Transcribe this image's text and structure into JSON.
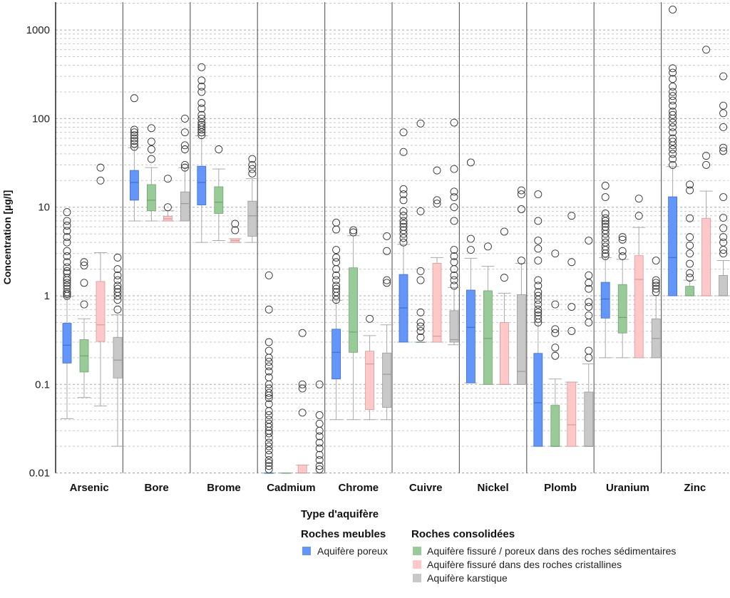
{
  "chart_data": {
    "type": "boxplot",
    "yscale": "log",
    "ylabel": "Concentration [µg/l]",
    "ylim": [
      0.01,
      2000
    ],
    "yticks": [
      0.01,
      0.1,
      1,
      10,
      100,
      1000
    ],
    "ytick_labels": [
      "0.01",
      "0.1",
      "1",
      "10",
      "100",
      "1000"
    ],
    "grid": "dashed horizontal minor and major",
    "categories": [
      "Arsenic",
      "Bore",
      "Brome",
      "Cadmium",
      "Chrome",
      "Cuivre",
      "Nickel",
      "Plomb",
      "Uranium",
      "Zinc"
    ],
    "legend": {
      "title": "Type d'aquifère",
      "groups": [
        {
          "label": "Roches meubles",
          "entries": [
            "Aquifère poreux"
          ]
        },
        {
          "label": "Roches consolidées",
          "entries": [
            "Aquifère fissuré / poreux dans des roches sédimentaires",
            "Aquifère fissuré dans des roches cristallines",
            "Aquifère karstique"
          ]
        }
      ],
      "placement": "bottom"
    },
    "series": [
      {
        "name": "Aquifère poreux",
        "color": "#6496FA",
        "boxes": [
          {
            "lo": 0.041,
            "q1": 0.174,
            "med": 0.277,
            "q3": 0.49,
            "hi": 0.98,
            "out": [
              1.0,
              1.05,
              1.1,
              1.2,
              1.3,
              1.4,
              1.5,
              1.6,
              1.8,
              1.9,
              2.1,
              2.4,
              2.8,
              3.2,
              4,
              4.6,
              5.4,
              6.2,
              7,
              8.8
            ]
          },
          {
            "lo": 7,
            "q1": 12,
            "med": 19,
            "q3": 26,
            "hi": 47,
            "out": [
              48,
              52,
              56,
              60,
              65,
              70,
              75,
              170
            ]
          },
          {
            "lo": 4,
            "q1": 10.6,
            "med": 19,
            "q3": 29,
            "hi": 64,
            "out": [
              65,
              70,
              75,
              80,
              85,
              90,
              100,
              110,
              130,
              150,
              200,
              230,
              270,
              380
            ]
          },
          {
            "lo": 0.01,
            "q1": 0.01,
            "med": 0.01,
            "q3": 0.01,
            "hi": 0.01,
            "out": [
              0.011,
              0.012,
              0.013,
              0.014,
              0.016,
              0.018,
              0.02,
              0.022,
              0.025,
              0.028,
              0.03,
              0.033,
              0.036,
              0.04,
              0.045,
              0.05,
              0.06,
              0.07,
              0.075,
              0.08,
              0.09,
              0.1,
              0.12,
              0.14,
              0.16,
              0.18,
              0.2,
              0.24,
              0.3,
              0.7,
              1.7
            ]
          },
          {
            "lo": 0.04,
            "q1": 0.115,
            "med": 0.23,
            "q3": 0.42,
            "hi": 0.89,
            "out": [
              0.9,
              1.0,
              1.1,
              1.2,
              1.3,
              1.5,
              1.7,
              2.0,
              2.4,
              2.7,
              3.3,
              5.6,
              6.7
            ]
          },
          {
            "lo": 0.3,
            "q1": 0.3,
            "med": 0.73,
            "q3": 1.74,
            "hi": 3.8,
            "out": [
              4,
              4.5,
              5,
              5.5,
              6,
              6.5,
              7,
              8,
              9,
              12,
              14,
              16,
              42,
              70
            ]
          },
          {
            "lo": 0.104,
            "q1": 0.104,
            "med": 0.44,
            "q3": 1.16,
            "hi": 2.65,
            "out": [
              3.3,
              4.4,
              32
            ]
          },
          {
            "lo": 0.02,
            "q1": 0.02,
            "med": 0.062,
            "q3": 0.224,
            "hi": 0.5,
            "out": [
              0.5,
              0.55,
              0.6,
              0.65,
              0.7,
              0.8,
              0.9,
              1.0,
              1.1,
              1.3,
              1.5,
              2.5,
              3.4,
              4.2,
              7,
              14
            ]
          },
          {
            "lo": 0.2,
            "q1": 0.56,
            "med": 0.92,
            "q3": 1.42,
            "hi": 2.7,
            "out": [
              2.8,
              3,
              3.3,
              3.6,
              4,
              4.5,
              5,
              5.5,
              6,
              6.5,
              7,
              7.5,
              8.5,
              13,
              17.5
            ]
          },
          {
            "lo": 1,
            "q1": 1,
            "med": 2.7,
            "q3": 13.1,
            "hi": 28.7,
            "out": [
              30,
              35,
              40,
              45,
              50,
              55,
              60,
              70,
              80,
              90,
              100,
              110,
              120,
              140,
              160,
              180,
              200,
              230,
              280,
              330,
              370,
              1700
            ]
          }
        ]
      },
      {
        "name": "Aquifère fissuré / poreux dans des roches sédimentaires",
        "color": "#98CB98",
        "boxes": [
          {
            "lo": 0.071,
            "q1": 0.138,
            "med": 0.21,
            "q3": 0.32,
            "hi": 0.55,
            "out": [
              0.8,
              1.4,
              2.2,
              2.4
            ]
          },
          {
            "lo": 7,
            "q1": 9.1,
            "med": 12,
            "q3": 18,
            "hi": 28,
            "out": [
              35,
              45,
              55,
              78
            ]
          },
          {
            "lo": 4.2,
            "q1": 8.5,
            "med": 11.4,
            "q3": 17,
            "hi": 27,
            "out": [
              45
            ]
          },
          {
            "lo": 0.01,
            "q1": 0.01,
            "med": 0.01,
            "q3": 0.01,
            "hi": 0.01,
            "out": []
          },
          {
            "lo": 0.04,
            "q1": 0.23,
            "med": 0.39,
            "q3": 2.07,
            "hi": 4.76,
            "out": [
              5.2,
              5.5
            ]
          },
          {
            "lo": 0.3,
            "q1": 0.3,
            "med": 0.3,
            "q3": 0.3,
            "hi": 0.3,
            "out": [
              0.34,
              0.4,
              0.45,
              0.5,
              0.65,
              1.5,
              1.9,
              9,
              88
            ]
          },
          {
            "lo": 0.1,
            "q1": 0.1,
            "med": 0.33,
            "q3": 1.14,
            "hi": 2.15,
            "out": [
              3.6
            ]
          },
          {
            "lo": 0.02,
            "q1": 0.02,
            "med": 0.02,
            "q3": 0.058,
            "hi": 0.115,
            "out": [
              0.21,
              0.26,
              0.38,
              0.42,
              0.8,
              3
            ]
          },
          {
            "lo": 0.2,
            "q1": 0.38,
            "med": 0.57,
            "q3": 1.34,
            "hi": 2.58,
            "out": [
              2.8,
              3.2,
              4.3,
              4.6
            ]
          },
          {
            "lo": 1,
            "q1": 1,
            "med": 1,
            "q3": 1.28,
            "hi": 1.5,
            "out": [
              1.6,
              1.8,
              2.3,
              3,
              3.7,
              4.6,
              7.5,
              15.5,
              18
            ]
          }
        ]
      },
      {
        "name": "Aquifère fissuré dans des roches cristallines",
        "color": "#FFC8C8",
        "boxes": [
          {
            "lo": 0.057,
            "q1": 0.305,
            "med": 0.47,
            "q3": 1.45,
            "hi": 3.07,
            "out": [
              20,
              28
            ]
          },
          {
            "lo": 7,
            "q1": 7,
            "med": 7.4,
            "q3": 7.9,
            "hi": 9.1,
            "out": [
              10,
              21
            ]
          },
          {
            "lo": 4,
            "q1": 4,
            "med": 4.2,
            "q3": 4.4,
            "hi": 4.4,
            "out": [
              5.5,
              6.5
            ]
          },
          {
            "lo": 0.01,
            "q1": 0.01,
            "med": 0.01,
            "q3": 0.0123,
            "hi": 0.0123,
            "out": [
              0.048,
              0.09,
              0.1,
              0.38
            ]
          },
          {
            "lo": 0.04,
            "q1": 0.052,
            "med": 0.17,
            "q3": 0.237,
            "hi": 0.355,
            "out": [
              0.55
            ]
          },
          {
            "lo": 0.3,
            "q1": 0.3,
            "med": 0.35,
            "q3": 2.33,
            "hi": 2.7,
            "out": [
              11,
              12,
              26
            ]
          },
          {
            "lo": 0.1,
            "q1": 0.1,
            "med": 0.1,
            "q3": 0.5,
            "hi": 1.07,
            "out": [
              1.6,
              5.3
            ]
          },
          {
            "lo": 0.02,
            "q1": 0.02,
            "med": 0.035,
            "q3": 0.106,
            "hi": 0.106,
            "out": [
              0.4,
              0.75,
              2.4,
              8
            ]
          },
          {
            "lo": 0.2,
            "q1": 0.2,
            "med": 1.53,
            "q3": 2.84,
            "hi": 5.9,
            "out": [
              8,
              12.5
            ]
          },
          {
            "lo": 1,
            "q1": 1,
            "med": 1,
            "q3": 7.5,
            "hi": 15.2,
            "out": [
              30,
              38,
              600
            ]
          }
        ]
      },
      {
        "name": "Aquifère karstique",
        "color": "#C8C8C8",
        "boxes": [
          {
            "lo": 0.02,
            "q1": 0.118,
            "med": 0.188,
            "q3": 0.34,
            "hi": 0.61,
            "out": [
              0.7,
              0.9,
              1.0,
              1.1,
              1.2,
              1.3,
              1.5,
              1.7,
              2,
              2.7
            ]
          },
          {
            "lo": 7,
            "q1": 7,
            "med": 11,
            "q3": 14.9,
            "hi": 28,
            "out": [
              28,
              30,
              45,
              50,
              70,
              100
            ]
          },
          {
            "lo": 4,
            "q1": 4.7,
            "med": 8,
            "q3": 11.7,
            "hi": 21,
            "out": [
              24,
              27,
              30,
              35
            ]
          },
          {
            "lo": 0.01,
            "q1": 0.01,
            "med": 0.01,
            "q3": 0.01,
            "hi": 0.01,
            "out": [
              0.011,
              0.012,
              0.014,
              0.016,
              0.019,
              0.022,
              0.026,
              0.03,
              0.036,
              0.045,
              0.1
            ]
          },
          {
            "lo": 0.04,
            "q1": 0.055,
            "med": 0.13,
            "q3": 0.226,
            "hi": 0.47,
            "out": [
              1.4,
              1.5,
              3.2,
              4.7
            ]
          },
          {
            "lo": 0.28,
            "q1": 0.3,
            "med": 0.32,
            "q3": 0.68,
            "hi": 1.24,
            "out": [
              1.3,
              1.5,
              1.7,
              2,
              2.4,
              2.8,
              3.3,
              7,
              10,
              13,
              15,
              27,
              90
            ]
          },
          {
            "lo": 0.1,
            "q1": 0.1,
            "med": 0.14,
            "q3": 1.03,
            "hi": 2.33,
            "out": [
              2.5,
              9.5,
              14,
              15.5
            ]
          },
          {
            "lo": 0.02,
            "q1": 0.02,
            "med": 0.02,
            "q3": 0.082,
            "hi": 0.17,
            "out": [
              0.2,
              0.24,
              0.5,
              0.6,
              0.75,
              0.85,
              1.2,
              1.4,
              1.7,
              4.2
            ]
          },
          {
            "lo": 0.2,
            "q1": 0.2,
            "med": 0.33,
            "q3": 0.55,
            "hi": 1.0,
            "out": [
              1.1,
              1.2,
              1.3,
              1.4,
              1.5,
              2.5
            ]
          },
          {
            "lo": 1,
            "q1": 1,
            "med": 1,
            "q3": 1.7,
            "hi": 2.5,
            "out": [
              3,
              3.3,
              4,
              4.6,
              5.8,
              7.6,
              13,
              43,
              47,
              80,
              115,
              140,
              300
            ]
          }
        ]
      }
    ]
  }
}
